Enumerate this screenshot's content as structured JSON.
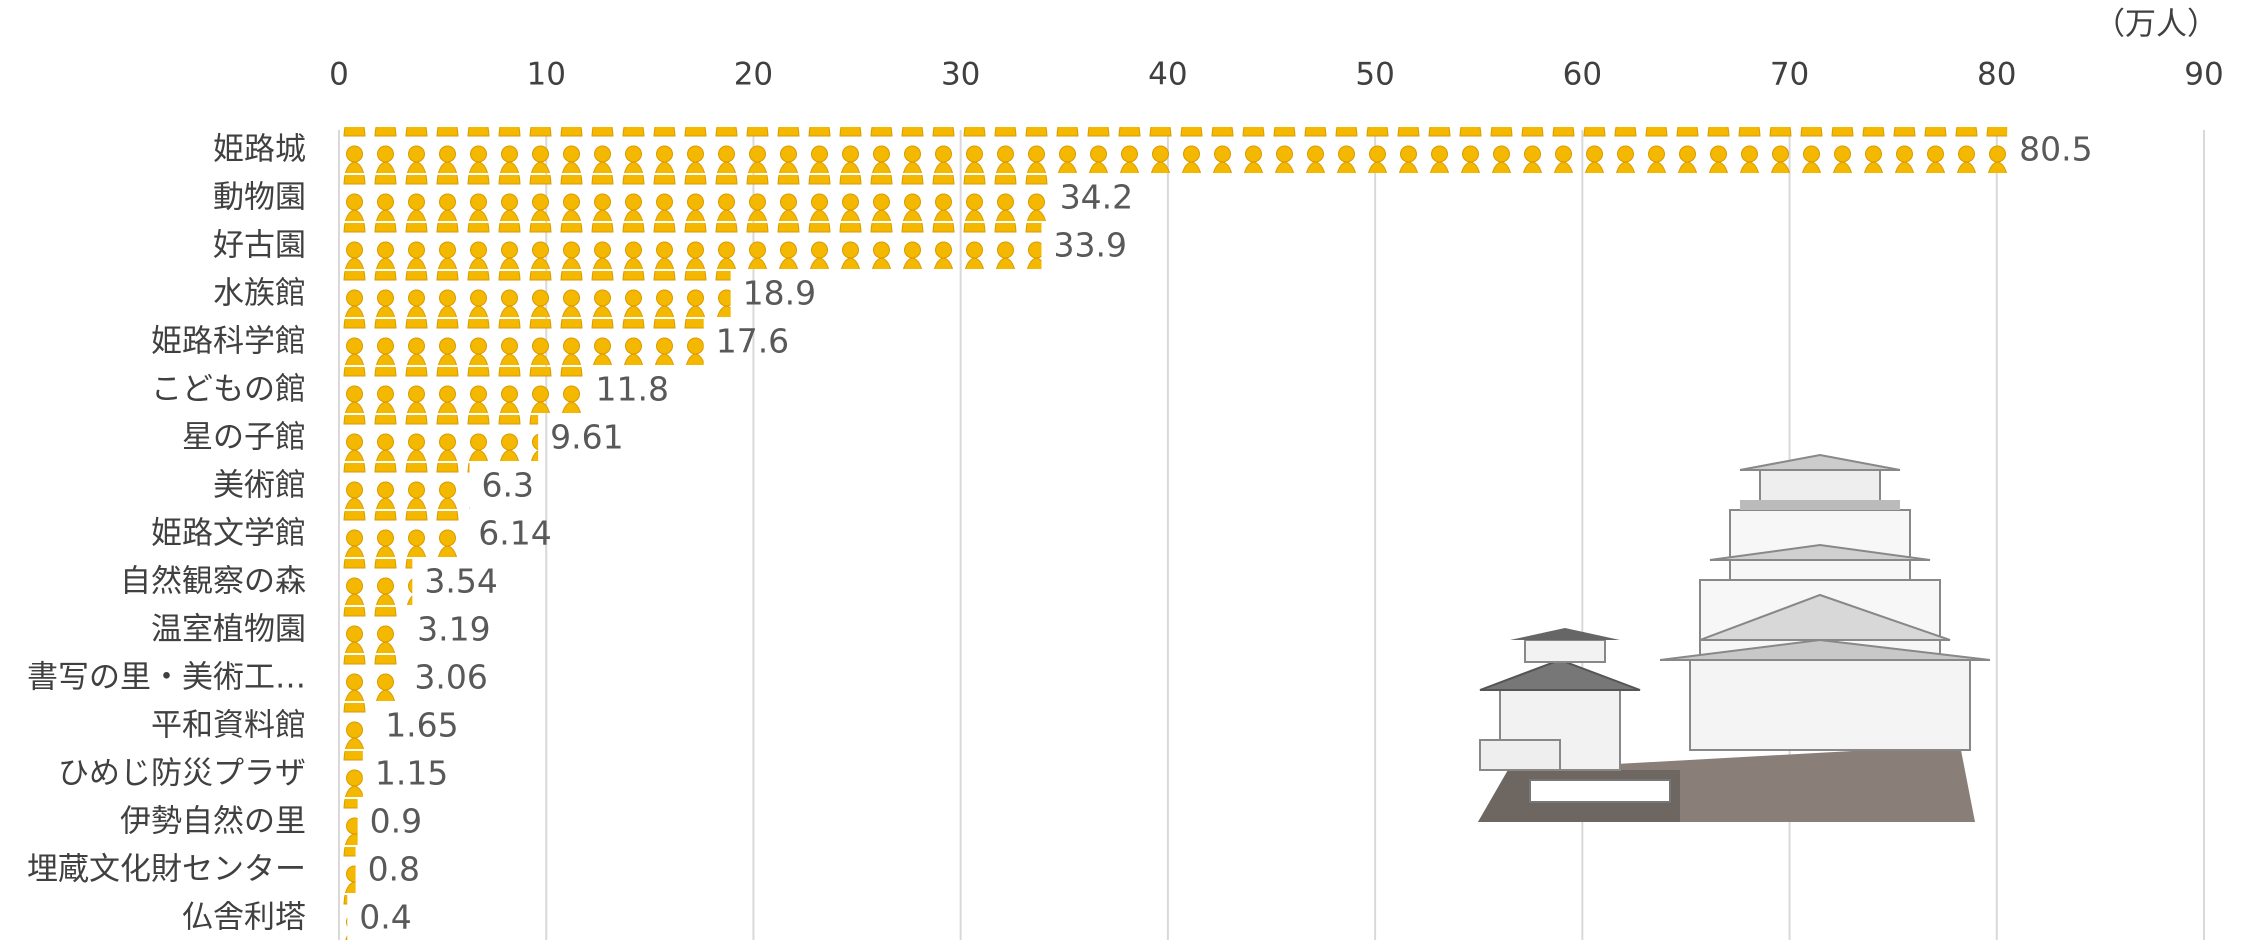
{
  "chart_data": {
    "type": "pictograph-bar",
    "unit_label": "（万人）",
    "categories": [
      "姫路城",
      "動物園",
      "好古園",
      "水族館",
      "姫路科学館",
      "こどもの館",
      "星の子館",
      "美術館",
      "姫路文学館",
      "自然観察の森",
      "温室植物園",
      "書写の里・美術工…",
      "平和資料館",
      "ひめじ防災プラザ",
      "伊勢自然の里",
      "埋蔵文化財センター",
      "仏舎利塔"
    ],
    "values": [
      80.5,
      34.2,
      33.9,
      18.9,
      17.6,
      11.8,
      9.61,
      6.3,
      6.14,
      3.54,
      3.19,
      3.06,
      1.65,
      1.15,
      0.9,
      0.8,
      0.4
    ],
    "color": "#f5b800",
    "xlim": [
      0,
      90
    ],
    "xticks": [
      0,
      10,
      20,
      30,
      40,
      50,
      60,
      70,
      80,
      90
    ],
    "grid": true
  }
}
